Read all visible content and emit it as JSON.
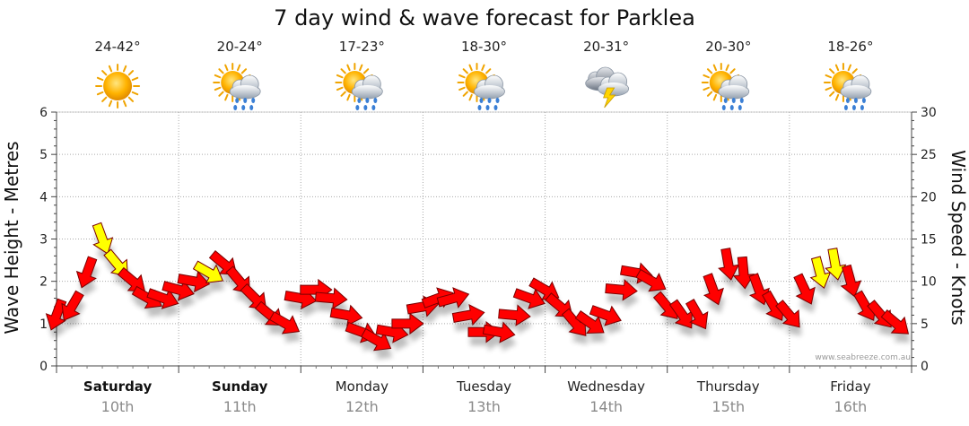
{
  "chart_data": {
    "type": "line",
    "title": "7 day wind & wave forecast for Parklea",
    "ylabel_left": "Wave Height - Metres",
    "ylabel_right": "Wind Speed - Knots",
    "ylim_left": [
      0,
      6
    ],
    "ylim_right": [
      0,
      30
    ],
    "yticks_left": [
      "0",
      "1",
      "2",
      "3",
      "4",
      "5",
      "6"
    ],
    "yticks_right": [
      "0",
      "5",
      "10",
      "15",
      "20",
      "25",
      "30"
    ],
    "grid": true,
    "credit": "www.seabreeze.com.au",
    "days": [
      {
        "name": "Saturday",
        "date": "10th",
        "temp": "24-42°",
        "icon": "sunny-icon",
        "bold": true
      },
      {
        "name": "Sunday",
        "date": "11th",
        "temp": "20-24°",
        "icon": "sun-rain-icon",
        "bold": true
      },
      {
        "name": "Monday",
        "date": "12th",
        "temp": "17-23°",
        "icon": "sun-rain-icon",
        "bold": false
      },
      {
        "name": "Tuesday",
        "date": "13th",
        "temp": "18-30°",
        "icon": "sun-rain-icon",
        "bold": false
      },
      {
        "name": "Wednesday",
        "date": "14th",
        "temp": "20-31°",
        "icon": "storm-icon",
        "bold": false
      },
      {
        "name": "Thursday",
        "date": "15th",
        "temp": "20-30°",
        "icon": "sun-rain-icon",
        "bold": false
      },
      {
        "name": "Friday",
        "date": "16th",
        "temp": "18-26°",
        "icon": "sun-rain-icon",
        "bold": false
      }
    ],
    "series": [
      {
        "name": "Wind Speed",
        "unit": "knots",
        "x_hours": [
          0,
          3,
          6,
          9,
          12,
          15,
          18,
          21,
          24,
          27,
          30,
          33,
          36,
          39,
          42,
          45,
          48,
          51,
          54,
          57,
          60,
          63,
          66,
          69,
          72,
          75,
          78,
          81,
          84,
          87,
          90,
          93,
          96,
          99,
          102,
          105,
          108,
          111,
          114,
          117,
          120,
          123,
          126,
          129,
          132,
          135,
          138,
          141,
          144,
          147,
          150,
          153,
          156,
          159,
          162,
          165
        ],
        "values": [
          6,
          7,
          11,
          15,
          12,
          10,
          8,
          8,
          9,
          10,
          11,
          12,
          10,
          8,
          6,
          5,
          8,
          9,
          8,
          6,
          4,
          3,
          4,
          5,
          7,
          8,
          8,
          6,
          4,
          4,
          6,
          8,
          9,
          7,
          5,
          5,
          6,
          9,
          11,
          10,
          7,
          6,
          6,
          9,
          12,
          11,
          9,
          7,
          6,
          9,
          11,
          12,
          10,
          7,
          6,
          5
        ],
        "direction_deg": [
          200,
          210,
          200,
          160,
          140,
          130,
          120,
          110,
          105,
          100,
          120,
          130,
          140,
          135,
          130,
          120,
          100,
          90,
          95,
          100,
          110,
          120,
          100,
          90,
          80,
          70,
          75,
          80,
          90,
          100,
          95,
          110,
          120,
          130,
          140,
          125,
          110,
          95,
          100,
          120,
          140,
          145,
          150,
          160,
          170,
          175,
          160,
          150,
          140,
          155,
          165,
          170,
          165,
          150,
          140,
          130
        ],
        "highlight": [
          "red",
          "red",
          "red",
          "yellow",
          "yellow",
          "red",
          "red",
          "red",
          "red",
          "red",
          "yellow",
          "red",
          "red",
          "red",
          "red",
          "red",
          "red",
          "red",
          "red",
          "red",
          "red",
          "red",
          "red",
          "red",
          "red",
          "red",
          "red",
          "red",
          "red",
          "red",
          "red",
          "red",
          "red",
          "red",
          "red",
          "red",
          "red",
          "red",
          "red",
          "red",
          "red",
          "red",
          "red",
          "red",
          "red",
          "red",
          "red",
          "red",
          "red",
          "red",
          "yellow",
          "yellow",
          "red",
          "red",
          "red",
          "red"
        ],
        "color": "#ff0000",
        "strong_color": "#ffff00"
      }
    ]
  }
}
